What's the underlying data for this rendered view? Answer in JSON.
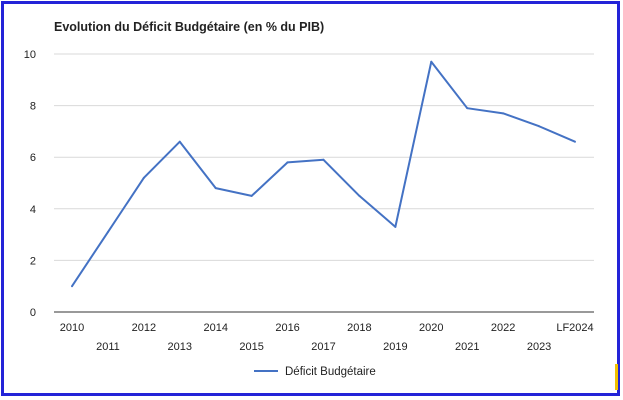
{
  "frame_color": "#2323d8",
  "chart_data": {
    "type": "line",
    "title": "Evolution du Déficit Budgétaire (en % du PIB)",
    "categories": [
      "2010",
      "2011",
      "2012",
      "2013",
      "2014",
      "2015",
      "2016",
      "2017",
      "2018",
      "2019",
      "2020",
      "2021",
      "2022",
      "2023",
      "LF2024"
    ],
    "series": [
      {
        "name": "Déficit Budgétaire",
        "color": "#4472c4",
        "values": [
          1.0,
          3.1,
          5.2,
          6.6,
          4.8,
          4.5,
          5.8,
          5.9,
          4.5,
          3.3,
          9.7,
          7.9,
          7.7,
          7.2,
          6.6
        ]
      }
    ],
    "yticks": [
      0,
      2,
      4,
      6,
      8,
      10
    ],
    "ylim": [
      0,
      10
    ],
    "grid": true,
    "legend_position": "bottom",
    "xlabel": "",
    "ylabel": ""
  }
}
